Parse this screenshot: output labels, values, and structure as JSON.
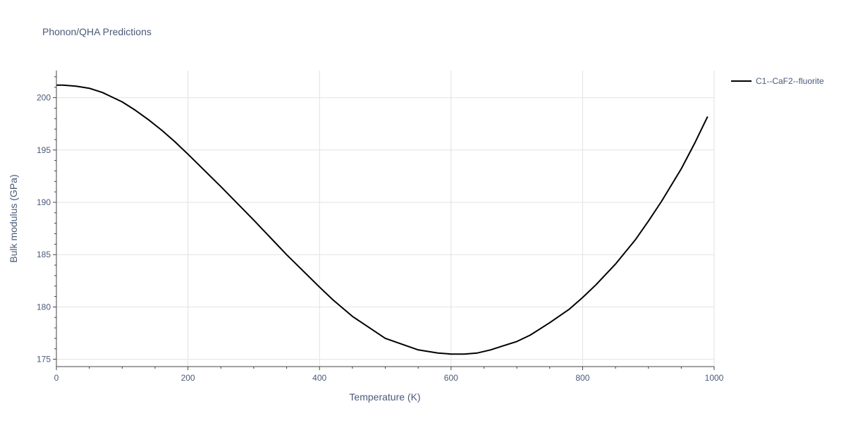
{
  "chart_data": {
    "type": "line",
    "title": "Phonon/QHA Predictions",
    "xlabel": "Temperature (K)",
    "ylabel": "Bulk modulus (GPa)",
    "xlim": [
      0,
      1000
    ],
    "ylim": [
      174.3,
      202.6
    ],
    "x_ticks": [
      0,
      200,
      400,
      600,
      800,
      1000
    ],
    "y_ticks": [
      175,
      180,
      185,
      190,
      195,
      200
    ],
    "grid": true,
    "legend_position": "top-right",
    "series": [
      {
        "name": "C1--CaF2--fluorite",
        "color": "#000000",
        "x": [
          0,
          10,
          30,
          50,
          70,
          80,
          100,
          120,
          140,
          160,
          180,
          200,
          250,
          300,
          350,
          400,
          420,
          450,
          500,
          550,
          580,
          600,
          620,
          640,
          660,
          680,
          700,
          720,
          750,
          780,
          800,
          820,
          850,
          880,
          900,
          920,
          950,
          970,
          990
        ],
        "y": [
          201.2,
          201.2,
          201.1,
          200.9,
          200.5,
          200.2,
          199.6,
          198.8,
          197.9,
          196.9,
          195.8,
          194.6,
          191.5,
          188.3,
          185.0,
          181.9,
          180.7,
          179.1,
          177.0,
          175.9,
          175.6,
          175.5,
          175.5,
          175.6,
          175.9,
          176.3,
          176.7,
          177.3,
          178.5,
          179.8,
          180.9,
          182.1,
          184.1,
          186.4,
          188.2,
          190.1,
          193.2,
          195.6,
          198.2
        ]
      }
    ]
  }
}
